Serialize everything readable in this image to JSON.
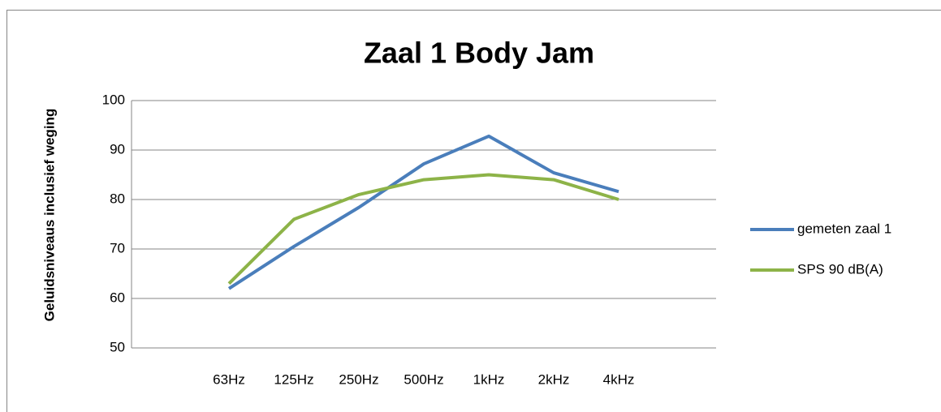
{
  "chart_data": {
    "type": "line",
    "title": "Zaal 1 Body Jam",
    "y_label": "Geluidsniveaus inclusief weging",
    "categories": [
      null,
      "63Hz",
      "125Hz",
      "250Hz",
      "500Hz",
      "1kHz",
      "2kHz",
      "4kHz",
      null
    ],
    "series": [
      {
        "name": "gemeten zaal 1",
        "color": "#4a7ebb",
        "values": [
          null,
          62,
          70.5,
          78.4,
          87.2,
          92.8,
          85.4,
          81.6,
          null
        ]
      },
      {
        "name": "SPS 90 dB(A)",
        "color": "#8db348",
        "values": [
          null,
          63,
          76,
          81,
          84,
          85,
          84,
          80,
          null
        ]
      }
    ],
    "ylim": [
      50,
      100
    ],
    "yticks": [
      50,
      60,
      70,
      80,
      90,
      100
    ],
    "grid": true,
    "legend": "right"
  }
}
